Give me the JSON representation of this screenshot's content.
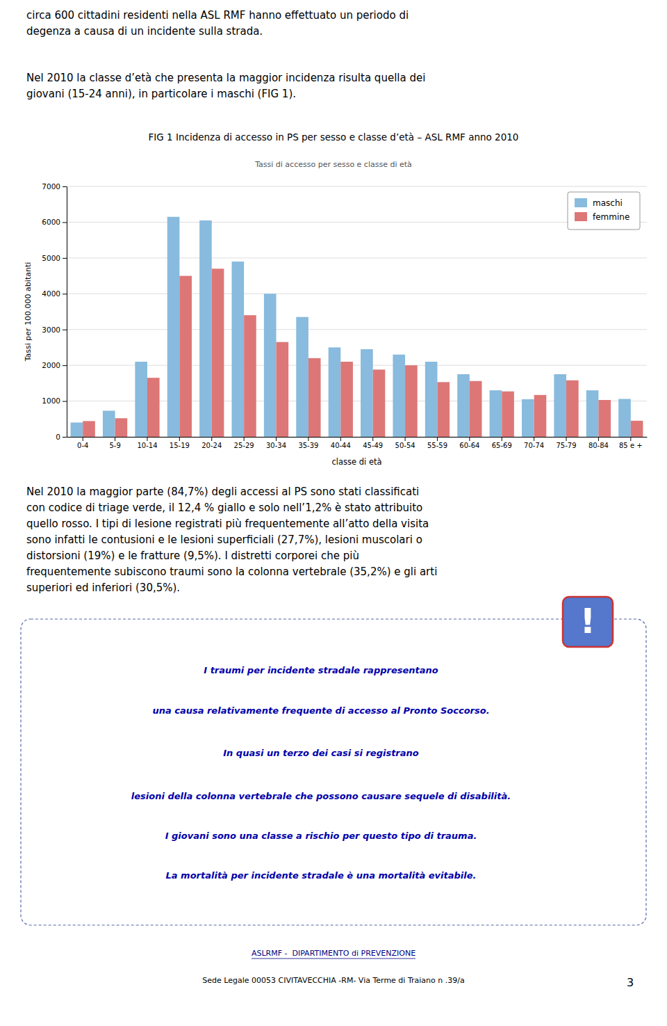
{
  "text_top": [
    [
      "circa 600 cittadini residenti nella ASL RMF hanno effettuato un periodo di",
      "degenza a causa di un incidente sulla strada."
    ],
    [
      "Nel 2010 la classe d’età che presenta la maggior incidenza risulta quella dei",
      "giovani (15-24 anni), in particolare i maschi (FIG 1)."
    ]
  ],
  "chart_data": {
    "type": "bar",
    "title": "FIG 1 Incidenza di accesso in PS per sesso e classe d’età – ASL RMF anno 2010",
    "subtitle": "Tassi di accesso per sesso e classe di età",
    "xlabel": "classe di età",
    "ylabel": "Tassi per 100.000 abitanti",
    "categories": [
      "0-4",
      "5-9",
      "10-14",
      "15-19",
      "20-24",
      "25-29",
      "30-34",
      "35-39",
      "40-44",
      "45-49",
      "50-54",
      "55-59",
      "60-64",
      "65-69",
      "70-74",
      "75-79",
      "80-84",
      "85 e +"
    ],
    "series": [
      {
        "name": "maschi",
        "color": "#88BBDD",
        "values": [
          400,
          730,
          2100,
          6150,
          6050,
          4900,
          4000,
          3350,
          2500,
          2450,
          2300,
          2100,
          1750,
          1300,
          1050,
          1750,
          1300,
          1060
        ]
      },
      {
        "name": "femmine",
        "color": "#DD7777",
        "values": [
          440,
          520,
          1650,
          4500,
          4700,
          3400,
          2650,
          2200,
          2100,
          1880,
          2000,
          1530,
          1560,
          1270,
          1170,
          1580,
          1030,
          450
        ]
      }
    ],
    "ylim": [
      0,
      7000
    ],
    "yticks": [
      0,
      1000,
      2000,
      3000,
      4000,
      5000,
      6000,
      7000
    ],
    "grid": true,
    "legend": "upper right"
  },
  "text_bottom": [
    "Nel 2010 la maggior parte (84,7%) degli accessi al PS sono stati classificati",
    "con codice di triage verde, il 12,4 % giallo e solo nell’1,2% è stato attribuito",
    "quello rosso. I tipi di lesione registrati più frequentemente all’atto della visita",
    "sono infatti le contusioni e le lesioni superficiali (27,7%), lesioni muscolari o",
    "distorsioni (19%) e le fratture (9,5%). I distretti corporei che più",
    "frequentemente subiscono traumi sono la colonna vertebrale (35,2%) e gli arti",
    "superiori ed inferiori (30,5%)."
  ],
  "box_lines": [
    "I traumi per incidente stradale rappresentano",
    "una causa relativamente frequente di accesso al Pronto Soccorso.",
    "In quasi un terzo dei casi si registrano",
    "lesioni della colonna vertebrale che possono causare sequele di disabilità.",
    "I giovani sono una classe a rischio per questo tipo di trauma.",
    "La mortalità per incidente stradale è una mortalità evitabile."
  ],
  "icon": "!",
  "footer": [
    "ASLRMF -  DIPARTIMENTO di PREVENZIONE",
    "Sede Legale 00053 CIVITAVECCHIA -RM- Via Terme di Traiano n .39/a"
  ],
  "page_number": "3"
}
